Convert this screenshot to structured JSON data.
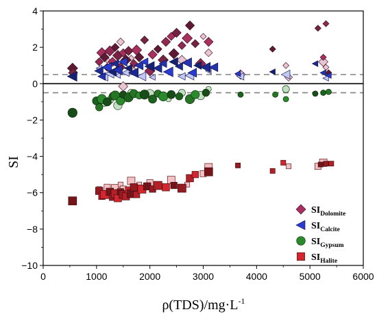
{
  "chart_data": {
    "type": "scatter",
    "title": "",
    "xlabel": "ρ(TDS)/mg·L",
    "xlabel_sup": "-1",
    "ylabel": "SI",
    "xlim": [
      0,
      6000
    ],
    "ylim": [
      -10,
      4
    ],
    "x_ticks": [
      0,
      1000,
      2000,
      3000,
      4000,
      5000,
      6000
    ],
    "y_ticks": [
      4,
      2,
      0,
      -2,
      -4,
      -6,
      -8,
      -10
    ],
    "reference_lines": [
      {
        "y": 0,
        "style": "solid"
      },
      {
        "y": 0.5,
        "style": "dashed"
      },
      {
        "y": -0.5,
        "style": "dashed"
      }
    ],
    "legend_position": "bottom-right",
    "grid": false,
    "series": [
      {
        "name": "SI",
        "sub": "Dolomite",
        "marker": "diamond",
        "color": "#a8305f",
        "points": [
          [
            550,
            0.85
          ],
          [
            560,
            0.6
          ],
          [
            1050,
            1.2
          ],
          [
            1100,
            1.7
          ],
          [
            1150,
            1.45
          ],
          [
            1200,
            0.9
          ],
          [
            1250,
            1.8
          ],
          [
            1300,
            1.2
          ],
          [
            1350,
            2.0
          ],
          [
            1400,
            1.55
          ],
          [
            1450,
            0.9
          ],
          [
            1500,
            1.7
          ],
          [
            1550,
            1.3
          ],
          [
            1600,
            1.8
          ],
          [
            1700,
            1.1
          ],
          [
            1750,
            1.85
          ],
          [
            1800,
            1.45
          ],
          [
            1900,
            2.4
          ],
          [
            2000,
            0.7
          ],
          [
            2050,
            1.6
          ],
          [
            2150,
            1.9
          ],
          [
            2250,
            1.3
          ],
          [
            2300,
            2.3
          ],
          [
            2400,
            2.6
          ],
          [
            2450,
            1.65
          ],
          [
            2500,
            2.8
          ],
          [
            2600,
            2.1
          ],
          [
            2700,
            2.5
          ],
          [
            2750,
            3.2
          ],
          [
            2850,
            2.2
          ],
          [
            2950,
            1.1
          ],
          [
            3100,
            2.3
          ],
          [
            4300,
            1.9
          ],
          [
            5150,
            3.05
          ],
          [
            5300,
            3.3
          ],
          [
            5250,
            1.45
          ],
          [
            5350,
            0.6
          ]
        ],
        "faded": [
          [
            1200,
            1.3
          ],
          [
            1450,
            2.3
          ],
          [
            1500,
            -0.15
          ],
          [
            1650,
            1.4
          ],
          [
            1700,
            0.7
          ],
          [
            2600,
            1.3
          ],
          [
            3000,
            2.6
          ],
          [
            3100,
            1.7
          ],
          [
            3700,
            0.5
          ],
          [
            4550,
            1.0
          ],
          [
            4600,
            0.35
          ],
          [
            5250,
            1.2
          ],
          [
            5300,
            0.9
          ]
        ]
      },
      {
        "name": "SI",
        "sub": "Calcite",
        "marker": "triangle-left",
        "color": "#2a3ccf",
        "points": [
          [
            550,
            0.4
          ],
          [
            1050,
            0.7
          ],
          [
            1100,
            0.4
          ],
          [
            1200,
            0.9
          ],
          [
            1300,
            0.65
          ],
          [
            1350,
            1.1
          ],
          [
            1400,
            0.75
          ],
          [
            1500,
            1.2
          ],
          [
            1600,
            0.85
          ],
          [
            1700,
            0.6
          ],
          [
            1800,
            1.0
          ],
          [
            1900,
            1.2
          ],
          [
            2000,
            0.95
          ],
          [
            2150,
            0.85
          ],
          [
            2250,
            1.1
          ],
          [
            2350,
            0.65
          ],
          [
            2450,
            1.2
          ],
          [
            2550,
            0.95
          ],
          [
            2700,
            1.15
          ],
          [
            2800,
            0.6
          ],
          [
            2900,
            1.0
          ],
          [
            3050,
            0.9
          ],
          [
            3200,
            0.9
          ],
          [
            3650,
            0.55
          ],
          [
            4300,
            0.65
          ],
          [
            5100,
            1.1
          ],
          [
            5250,
            0.6
          ],
          [
            5350,
            0.45
          ]
        ],
        "faded": [
          [
            1050,
            0.85
          ],
          [
            1150,
            0.35
          ],
          [
            1250,
            0.55
          ],
          [
            1400,
            0.45
          ],
          [
            1550,
            0.6
          ],
          [
            1850,
            0.4
          ],
          [
            2050,
            0.35
          ],
          [
            2600,
            0.4
          ],
          [
            2750,
            0.45
          ],
          [
            3100,
            0.7
          ],
          [
            3700,
            0.4
          ],
          [
            4550,
            0.5
          ],
          [
            5300,
            0.3
          ]
        ]
      },
      {
        "name": "SI",
        "sub": "Gypsum",
        "marker": "circle",
        "color": "#2b8a2b",
        "points": [
          [
            550,
            -1.6
          ],
          [
            1000,
            -0.95
          ],
          [
            1050,
            -1.3
          ],
          [
            1100,
            -0.85
          ],
          [
            1200,
            -1.0
          ],
          [
            1300,
            -0.7
          ],
          [
            1350,
            -0.65
          ],
          [
            1450,
            -0.95
          ],
          [
            1500,
            -0.6
          ],
          [
            1600,
            -0.75
          ],
          [
            1700,
            -0.55
          ],
          [
            1800,
            -0.65
          ],
          [
            1900,
            -0.6
          ],
          [
            2050,
            -0.85
          ],
          [
            2150,
            -0.55
          ],
          [
            2250,
            -0.7
          ],
          [
            2400,
            -0.6
          ],
          [
            2550,
            -0.7
          ],
          [
            2750,
            -0.85
          ],
          [
            2850,
            -0.6
          ],
          [
            3050,
            -0.5
          ],
          [
            3700,
            -0.6
          ],
          [
            4350,
            -0.6
          ],
          [
            4550,
            -0.85
          ],
          [
            5100,
            -0.55
          ],
          [
            5250,
            -0.5
          ],
          [
            5350,
            -0.45
          ]
        ],
        "faded": [
          [
            1150,
            -1.1
          ],
          [
            1250,
            -0.9
          ],
          [
            1400,
            -1.2
          ],
          [
            1550,
            -0.85
          ],
          [
            1650,
            -0.5
          ],
          [
            2000,
            -0.55
          ],
          [
            2350,
            -0.85
          ],
          [
            2600,
            -0.5
          ],
          [
            2950,
            -0.65
          ],
          [
            3100,
            -0.3
          ],
          [
            4550,
            -0.3
          ]
        ]
      },
      {
        "name": "SI",
        "sub": "Halite",
        "marker": "square",
        "color": "#d3262f",
        "points": [
          [
            550,
            -6.45
          ],
          [
            1050,
            -5.9
          ],
          [
            1100,
            -6.2
          ],
          [
            1150,
            -6.1
          ],
          [
            1250,
            -5.95
          ],
          [
            1300,
            -6.25
          ],
          [
            1350,
            -6.05
          ],
          [
            1400,
            -6.3
          ],
          [
            1450,
            -5.95
          ],
          [
            1500,
            -6.1
          ],
          [
            1550,
            -6.2
          ],
          [
            1600,
            -5.85
          ],
          [
            1650,
            -6.05
          ],
          [
            1700,
            -5.7
          ],
          [
            1750,
            -6.1
          ],
          [
            1850,
            -5.8
          ],
          [
            1950,
            -5.65
          ],
          [
            2050,
            -5.8
          ],
          [
            2150,
            -5.6
          ],
          [
            2300,
            -5.7
          ],
          [
            2450,
            -5.6
          ],
          [
            2600,
            -5.75
          ],
          [
            2750,
            -5.2
          ],
          [
            2850,
            -5.0
          ],
          [
            3100,
            -4.85
          ],
          [
            3650,
            -4.5
          ],
          [
            4300,
            -4.8
          ],
          [
            4500,
            -4.35
          ],
          [
            5200,
            -4.45
          ],
          [
            5300,
            -4.4
          ],
          [
            5400,
            -4.4
          ]
        ],
        "faded": [
          [
            1050,
            -5.8
          ],
          [
            1200,
            -5.7
          ],
          [
            1350,
            -5.75
          ],
          [
            1450,
            -5.55
          ],
          [
            1500,
            -5.8
          ],
          [
            1650,
            -5.35
          ],
          [
            1800,
            -5.55
          ],
          [
            2000,
            -5.45
          ],
          [
            2400,
            -5.3
          ],
          [
            2700,
            -5.55
          ],
          [
            3000,
            -4.95
          ],
          [
            3100,
            -4.6
          ],
          [
            4600,
            -4.55
          ],
          [
            5150,
            -4.55
          ],
          [
            5250,
            -4.35
          ]
        ]
      }
    ]
  }
}
